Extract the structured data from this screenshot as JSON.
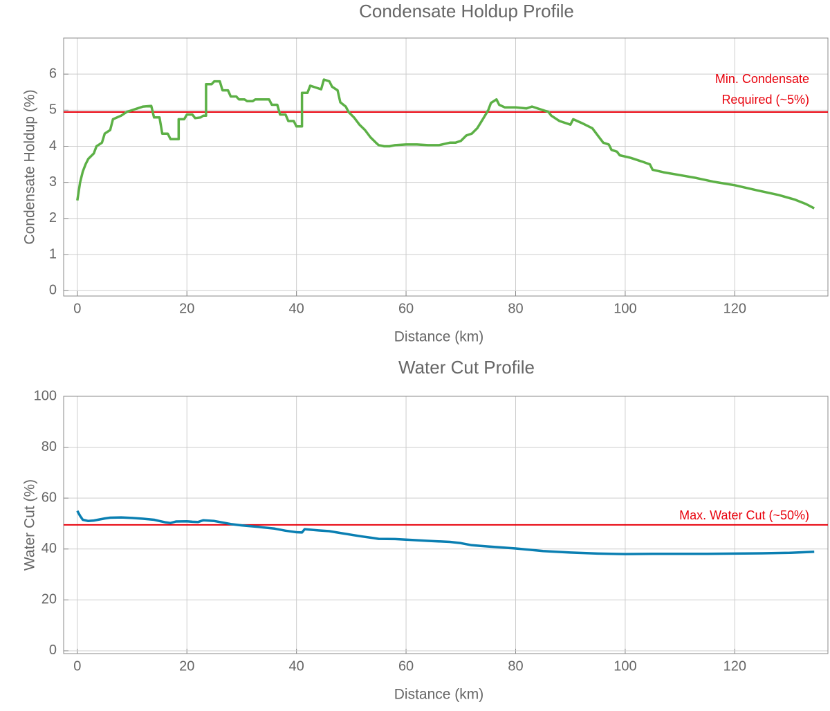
{
  "chart_data": [
    {
      "type": "line",
      "title": "Condensate Holdup Profile",
      "xlabel": "Distance (km)",
      "ylabel": "Condensate Holdup (%)",
      "xlim": [
        -2.5,
        137
      ],
      "ylim": [
        -0.15,
        7
      ],
      "xticks": [
        0,
        20,
        40,
        60,
        80,
        100,
        120
      ],
      "yticks": [
        0,
        1,
        2,
        3,
        4,
        5,
        6
      ],
      "grid": true,
      "reference_line": {
        "value": 4.95,
        "color": "#e8000b",
        "label": [
          "Min. Condensate",
          "Required (~5%)"
        ]
      },
      "series": [
        {
          "name": "Condensate Holdup",
          "color": "#5cb046",
          "x": [
            0,
            0.5,
            1,
            1.5,
            2,
            3,
            3.5,
            4.5,
            5,
            6,
            6.5,
            8,
            9,
            10,
            11,
            12,
            13.5,
            14,
            15,
            15.5,
            16.5,
            17,
            18.5,
            18.5,
            19.5,
            20,
            21,
            21.5,
            22.5,
            23,
            23.5,
            23.5,
            24.5,
            25,
            26,
            26.5,
            27.5,
            28,
            29,
            29.5,
            30.5,
            31,
            32,
            32.5,
            35,
            35.5,
            36.5,
            37,
            38,
            38.5,
            39.5,
            40,
            41,
            41,
            42,
            42.5,
            43.5,
            44.5,
            45,
            46,
            46.5,
            47.5,
            48,
            49,
            49.5,
            50.5,
            51.5,
            52.5,
            53.5,
            54.5,
            55,
            56,
            57,
            58,
            60,
            62,
            64,
            66,
            68,
            69,
            70,
            71,
            72,
            73,
            74,
            75,
            75.5,
            76.5,
            77,
            78,
            80,
            82,
            83,
            85,
            86,
            86.5,
            88,
            90,
            90.5,
            92,
            94,
            95,
            96,
            97,
            97.5,
            98.5,
            99,
            101,
            103,
            104.5,
            105,
            107,
            110,
            113,
            116,
            120,
            124,
            128,
            131,
            133,
            134.5
          ],
          "values": [
            2.5,
            3.0,
            3.3,
            3.5,
            3.65,
            3.8,
            4.0,
            4.1,
            4.35,
            4.45,
            4.75,
            4.85,
            4.95,
            5.0,
            5.05,
            5.1,
            5.12,
            4.8,
            4.8,
            4.35,
            4.35,
            4.2,
            4.2,
            4.75,
            4.75,
            4.88,
            4.88,
            4.78,
            4.8,
            4.85,
            4.85,
            5.72,
            5.72,
            5.8,
            5.8,
            5.55,
            5.55,
            5.38,
            5.38,
            5.3,
            5.3,
            5.25,
            5.25,
            5.3,
            5.3,
            5.15,
            5.15,
            4.88,
            4.88,
            4.7,
            4.7,
            4.55,
            4.55,
            5.48,
            5.48,
            5.68,
            5.63,
            5.58,
            5.85,
            5.8,
            5.65,
            5.55,
            5.22,
            5.1,
            4.95,
            4.8,
            4.6,
            4.45,
            4.25,
            4.1,
            4.03,
            4.0,
            4.0,
            4.03,
            4.05,
            4.05,
            4.03,
            4.03,
            4.1,
            4.1,
            4.15,
            4.3,
            4.35,
            4.5,
            4.75,
            5.0,
            5.2,
            5.3,
            5.15,
            5.08,
            5.08,
            5.05,
            5.1,
            5.0,
            4.95,
            4.85,
            4.7,
            4.6,
            4.75,
            4.65,
            4.5,
            4.3,
            4.1,
            4.05,
            3.9,
            3.85,
            3.75,
            3.68,
            3.58,
            3.5,
            3.35,
            3.28,
            3.2,
            3.12,
            3.02,
            2.92,
            2.78,
            2.65,
            2.52,
            2.4,
            2.28
          ]
        }
      ]
    },
    {
      "type": "line",
      "title": "Water Cut Profile",
      "xlabel": "Distance (km)",
      "ylabel": "Water Cut (%)",
      "xlim": [
        -2.5,
        137
      ],
      "ylim": [
        -1.1,
        100
      ],
      "xticks": [
        0,
        20,
        40,
        60,
        80,
        100,
        120
      ],
      "yticks": [
        0,
        20,
        40,
        60,
        80,
        100
      ],
      "grid": true,
      "reference_line": {
        "value": 49.5,
        "color": "#e8000b",
        "label": [
          "Max. Water Cut (~50%)"
        ]
      },
      "series": [
        {
          "name": "Water Cut",
          "color": "#0a7fb2",
          "x": [
            0,
            0.5,
            1,
            2,
            3,
            4,
            5,
            6,
            8,
            10,
            12,
            14,
            15,
            16,
            17,
            18,
            20,
            21,
            22,
            23,
            25,
            27,
            28,
            30,
            33,
            36,
            38,
            40,
            41,
            41.5,
            44,
            46,
            48,
            50,
            52,
            54,
            55,
            58,
            60,
            64,
            68,
            70,
            72,
            75,
            80,
            85,
            90,
            95,
            100,
            105,
            110,
            115,
            120,
            125,
            130,
            134.5
          ],
          "values": [
            55,
            53,
            51.5,
            51,
            51.2,
            51.6,
            52,
            52.3,
            52.4,
            52.2,
            51.9,
            51.5,
            51,
            50.5,
            50.2,
            50.8,
            50.9,
            50.7,
            50.6,
            51.3,
            51,
            50.2,
            49.8,
            49.3,
            48.7,
            48,
            47.2,
            46.6,
            46.5,
            47.8,
            47.3,
            47,
            46.3,
            45.6,
            44.9,
            44.3,
            44,
            43.9,
            43.7,
            43.2,
            42.8,
            42.3,
            41.5,
            41,
            40.2,
            39.2,
            38.6,
            38.2,
            38,
            38.1,
            38.1,
            38.1,
            38.2,
            38.3,
            38.5,
            38.9
          ]
        }
      ]
    }
  ]
}
